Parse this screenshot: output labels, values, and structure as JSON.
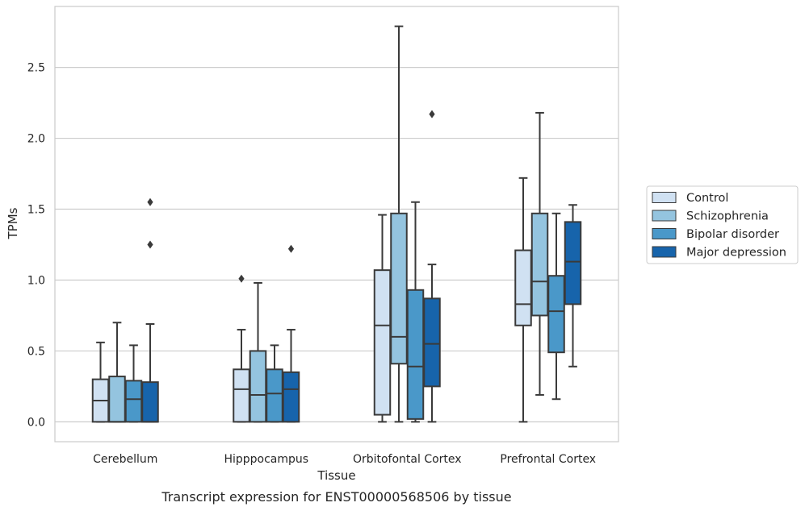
{
  "caption": "Transcript expression for ENST00000568506 by tissue",
  "chart_data": {
    "type": "boxplot",
    "xlabel": "Tissue",
    "ylabel": "TPMs",
    "ylim": [
      -0.14,
      2.93
    ],
    "yticks": [
      "0.0",
      "0.5",
      "1.0",
      "1.5",
      "2.0",
      "2.5"
    ],
    "grid": "horizontal",
    "legend_position": "right",
    "categories": [
      "Cerebellum",
      "Hipppocampus",
      "Orbitofontal Cortex",
      "Prefrontal Cortex"
    ],
    "series": [
      {
        "name": "Control",
        "color": "#d0e1f2",
        "boxes": [
          {
            "whisker_low": 0.0,
            "q1": 0.0,
            "median": 0.15,
            "q3": 0.3,
            "whisker_high": 0.56,
            "outliers": []
          },
          {
            "whisker_low": 0.0,
            "q1": 0.0,
            "median": 0.23,
            "q3": 0.37,
            "whisker_high": 0.65,
            "outliers": [
              1.01
            ]
          },
          {
            "whisker_low": 0.0,
            "q1": 0.05,
            "median": 0.68,
            "q3": 1.07,
            "whisker_high": 1.46,
            "outliers": []
          },
          {
            "whisker_low": 0.0,
            "q1": 0.68,
            "median": 0.83,
            "q3": 1.21,
            "whisker_high": 1.72,
            "outliers": []
          }
        ]
      },
      {
        "name": "Schizophrenia",
        "color": "#94c4df",
        "boxes": [
          {
            "whisker_low": 0.0,
            "q1": 0.0,
            "median": 0.0,
            "q3": 0.32,
            "whisker_high": 0.7,
            "outliers": []
          },
          {
            "whisker_low": 0.0,
            "q1": 0.0,
            "median": 0.19,
            "q3": 0.5,
            "whisker_high": 0.98,
            "outliers": []
          },
          {
            "whisker_low": 0.0,
            "q1": 0.41,
            "median": 0.6,
            "q3": 1.47,
            "whisker_high": 2.79,
            "outliers": []
          },
          {
            "whisker_low": 0.19,
            "q1": 0.75,
            "median": 0.99,
            "q3": 1.47,
            "whisker_high": 2.18,
            "outliers": []
          }
        ]
      },
      {
        "name": "Bipolar disorder",
        "color": "#4a98c9",
        "boxes": [
          {
            "whisker_low": 0.0,
            "q1": 0.0,
            "median": 0.16,
            "q3": 0.29,
            "whisker_high": 0.54,
            "outliers": []
          },
          {
            "whisker_low": 0.0,
            "q1": 0.0,
            "median": 0.2,
            "q3": 0.37,
            "whisker_high": 0.54,
            "outliers": []
          },
          {
            "whisker_low": 0.0,
            "q1": 0.02,
            "median": 0.39,
            "q3": 0.93,
            "whisker_high": 1.55,
            "outliers": []
          },
          {
            "whisker_low": 0.16,
            "q1": 0.49,
            "median": 0.78,
            "q3": 1.03,
            "whisker_high": 1.47,
            "outliers": []
          }
        ]
      },
      {
        "name": "Major depression",
        "color": "#1764ab",
        "boxes": [
          {
            "whisker_low": 0.0,
            "q1": 0.0,
            "median": 0.0,
            "q3": 0.28,
            "whisker_high": 0.69,
            "outliers": [
              1.25,
              1.55
            ]
          },
          {
            "whisker_low": 0.0,
            "q1": 0.0,
            "median": 0.23,
            "q3": 0.35,
            "whisker_high": 0.65,
            "outliers": [
              1.22
            ]
          },
          {
            "whisker_low": 0.0,
            "q1": 0.25,
            "median": 0.55,
            "q3": 0.87,
            "whisker_high": 1.11,
            "outliers": [
              2.17
            ]
          },
          {
            "whisker_low": 0.39,
            "q1": 0.83,
            "median": 1.13,
            "q3": 1.41,
            "whisker_high": 1.53,
            "outliers": []
          }
        ]
      }
    ]
  }
}
